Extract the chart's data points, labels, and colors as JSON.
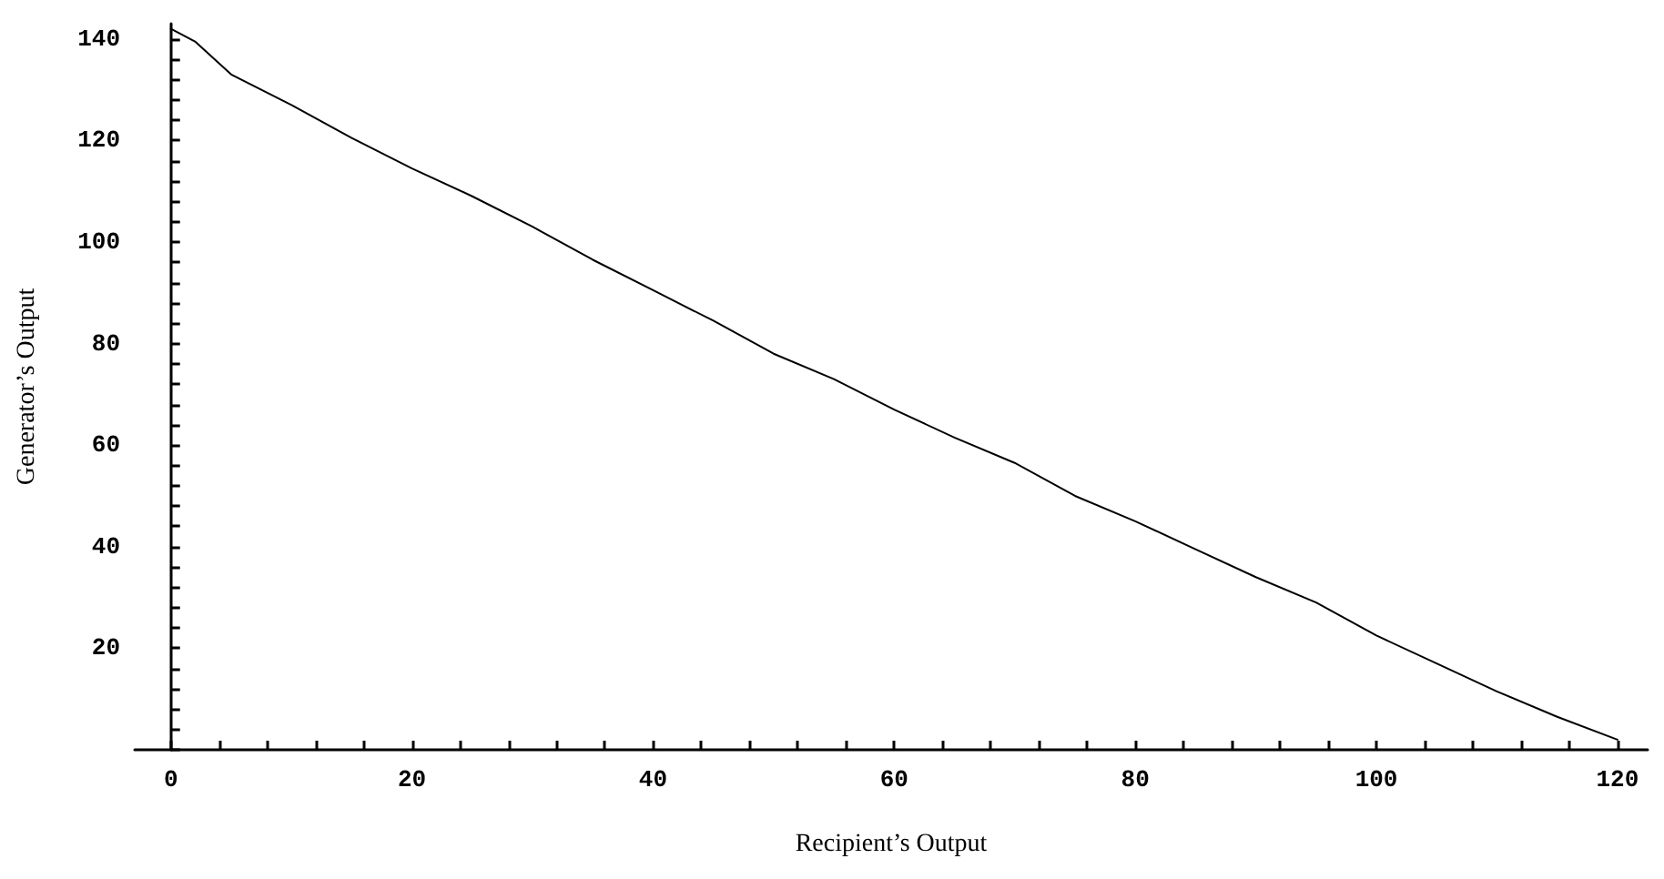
{
  "chart_data": {
    "type": "line",
    "xlabel": "Recipient’s Output",
    "ylabel": "Generator’s Output",
    "x": [
      0,
      2,
      5,
      10,
      15,
      20,
      25,
      30,
      35,
      40,
      45,
      50,
      55,
      60,
      65,
      70,
      75,
      80,
      85,
      90,
      95,
      100,
      105,
      110,
      115,
      120
    ],
    "series": [
      {
        "color": "#000000",
        "values": [
          142,
          139.5,
          133,
          127,
          120.5,
          114.5,
          109,
          103,
          96.5,
          90.5,
          84.5,
          78,
          73,
          67,
          61.5,
          56.5,
          50,
          45,
          39.5,
          34,
          29,
          22.5,
          17,
          11.5,
          6.5,
          2
        ]
      }
    ],
    "xlim": [
      -3,
      122.5
    ],
    "ylim": [
      0,
      143
    ],
    "xticks": [
      0,
      20,
      40,
      60,
      80,
      100,
      120
    ],
    "yticks": [
      20,
      40,
      60,
      80,
      100,
      120,
      140
    ],
    "marker": "none",
    "line_style": "solid"
  }
}
